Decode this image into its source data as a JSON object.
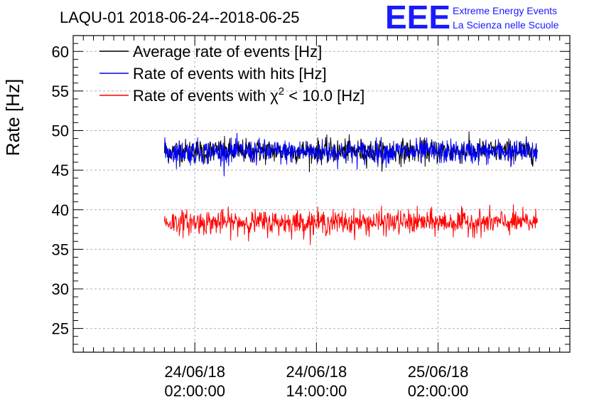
{
  "chart_data": {
    "type": "line",
    "title": "LAQU-01 2018-06-24--2018-06-25",
    "ylabel": "Rate [Hz]",
    "xlabel": "",
    "ylim": [
      22,
      62
    ],
    "yticks": [
      25,
      30,
      35,
      40,
      45,
      50,
      55,
      60
    ],
    "xlim_hours_from_2018_06_24_00_00": [
      -10,
      39
    ],
    "xticks": [
      {
        "hour": 2,
        "date": "24/06/18",
        "time": "02:00:00"
      },
      {
        "hour": 14,
        "date": "24/06/18",
        "time": "14:00:00"
      },
      {
        "hour": 26,
        "date": "25/06/18",
        "time": "02:00:00"
      }
    ],
    "grid": true,
    "legend_position": "top-left",
    "x_range_data": [
      -1.0,
      35.8
    ],
    "series": [
      {
        "name": "Average rate of events [Hz]",
        "color": "#000000",
        "mean": 47.4,
        "noise": 0.9,
        "min": 44.5,
        "max": 50.2
      },
      {
        "name": "Rate of events with hits [Hz]",
        "color": "#0000ff",
        "mean": 47.3,
        "noise": 0.9,
        "min": 44.0,
        "max": 50.3
      },
      {
        "name": "Rate of events with χ² < 10.0 [Hz]",
        "color": "#ff0000",
        "mean": 38.4,
        "noise": 0.9,
        "min": 35.5,
        "max": 41.0
      }
    ],
    "legend": [
      {
        "label": "Average rate of events [Hz]",
        "color": "#000000"
      },
      {
        "label": "Rate of events with hits [Hz]",
        "color": "#0000ff"
      },
      {
        "label_prefix": "Rate of events with ",
        "label_chi": "χ",
        "label_sup": "2",
        "label_suffix": " < 10.0 [Hz]",
        "color": "#ff0000"
      }
    ]
  },
  "logo": {
    "text": "EEE",
    "line1": "Extreme Energy Events",
    "line2": "La Scienza nelle Scuole",
    "color": "#1a1aff"
  }
}
